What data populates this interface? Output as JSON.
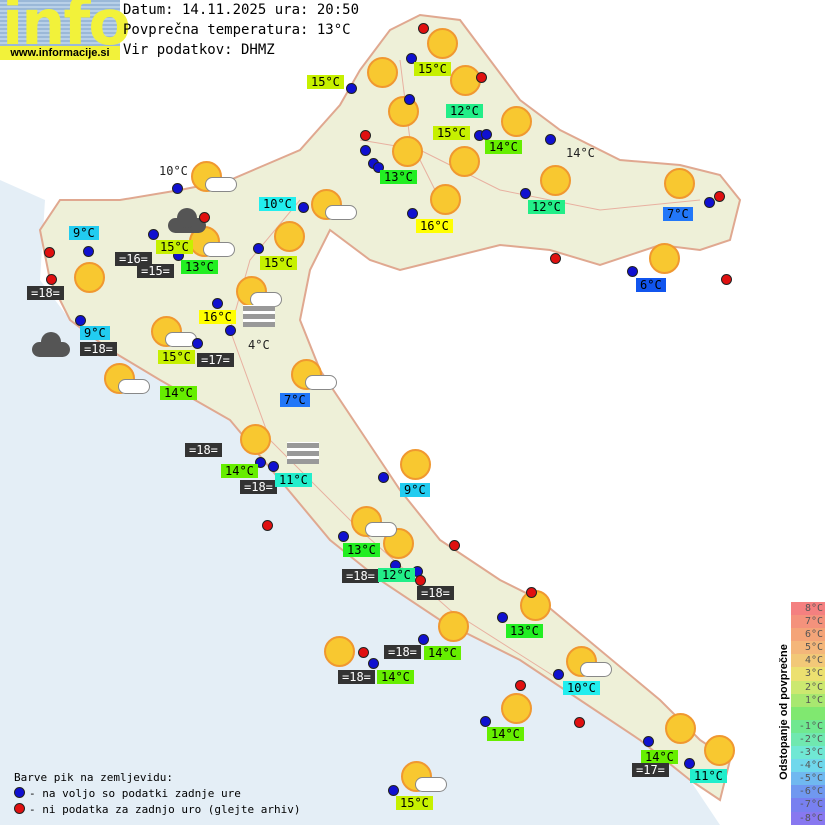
{
  "logo": {
    "word": "info",
    "url": "www.informacije.si"
  },
  "header": {
    "date_line": "Datum: 14.11.2025 ura: 20:50",
    "avg_temp_line": "Povprečna temperatura: 13°C",
    "source_line": "Vir podatkov: DHMZ"
  },
  "colors": {
    "t16": "#ffff00",
    "t15": "#c6f000",
    "t14": "#66ee00",
    "t13": "#22ee22",
    "t12": "#22ee88",
    "t11": "#22eecc",
    "t10": "#22eeee",
    "t9": "#22ccf0",
    "t7": "#2277f8",
    "t6": "#1155ee",
    "dark": "#333333",
    "station_ok": "#1010d0",
    "station_missing": "#e01010"
  },
  "labels": [
    {
      "text": "15°C",
      "style": "t15"
    },
    {
      "text": "15°C",
      "style": "t15"
    },
    {
      "text": "12°C",
      "style": "t12"
    },
    {
      "text": "15°C",
      "style": "t15"
    },
    {
      "text": "14°C",
      "style": "t14"
    },
    {
      "text": "13°C",
      "style": "t13"
    },
    {
      "text": "14°C",
      "style": "plain"
    },
    {
      "text": "10°C",
      "style": "t10"
    },
    {
      "text": "12°C",
      "style": "t12"
    },
    {
      "text": "16°C",
      "style": "t16"
    },
    {
      "text": "7°C",
      "style": "t7"
    },
    {
      "text": "9°C",
      "style": "t9"
    },
    {
      "text": "15°C",
      "style": "t15"
    },
    {
      "text": "13°C",
      "style": "t13"
    },
    {
      "text": "15°C",
      "style": "t15"
    },
    {
      "text": "=16=",
      "style": "dark"
    },
    {
      "text": "=15=",
      "style": "dark"
    },
    {
      "text": "=18=",
      "style": "dark"
    },
    {
      "text": "6°C",
      "style": "t6"
    },
    {
      "text": "16°C",
      "style": "t16"
    },
    {
      "text": "9°C",
      "style": "t9"
    },
    {
      "text": "=18=",
      "style": "dark"
    },
    {
      "text": "15°C",
      "style": "t15"
    },
    {
      "text": "=17=",
      "style": "dark"
    },
    {
      "text": "4°C",
      "style": "plain"
    },
    {
      "text": "10°C",
      "style": "plain"
    },
    {
      "text": "14°C",
      "style": "t14"
    },
    {
      "text": "7°C",
      "style": "t7"
    },
    {
      "text": "=18=",
      "style": "dark"
    },
    {
      "text": "14°C",
      "style": "t14"
    },
    {
      "text": "=18=",
      "style": "dark"
    },
    {
      "text": "11°C",
      "style": "t11"
    },
    {
      "text": "9°C",
      "style": "t9"
    },
    {
      "text": "13°C",
      "style": "t13"
    },
    {
      "text": "=18=",
      "style": "dark"
    },
    {
      "text": "12°C",
      "style": "t12"
    },
    {
      "text": "=18=",
      "style": "dark"
    },
    {
      "text": "13°C",
      "style": "t13"
    },
    {
      "text": "=18=",
      "style": "dark"
    },
    {
      "text": "14°C",
      "style": "t14"
    },
    {
      "text": "=18=",
      "style": "dark"
    },
    {
      "text": "14°C",
      "style": "t14"
    },
    {
      "text": "10°C",
      "style": "t10"
    },
    {
      "text": "14°C",
      "style": "t14"
    },
    {
      "text": "14°C",
      "style": "t14"
    },
    {
      "text": "=17=",
      "style": "dark"
    },
    {
      "text": "11°C",
      "style": "t11"
    },
    {
      "text": "15°C",
      "style": "t15"
    }
  ],
  "legend": {
    "title": "Barve pik na zemljevidu:",
    "ok": "- na voljo so podatki zadnje ure",
    "missing": "- ni podatka za zadnjo uro (glejte arhiv)"
  },
  "scale": {
    "title": "Odstopanje od povprečne temperature:",
    "steps": [
      {
        "label": "8°C",
        "color": "#f48080"
      },
      {
        "label": "7°C",
        "color": "#f4927c"
      },
      {
        "label": "6°C",
        "color": "#f4a478"
      },
      {
        "label": "5°C",
        "color": "#f4b67a"
      },
      {
        "label": "4°C",
        "color": "#f2c878"
      },
      {
        "label": "3°C",
        "color": "#ece070"
      },
      {
        "label": "2°C",
        "color": "#cce870"
      },
      {
        "label": "1°C",
        "color": "#a8e870"
      },
      {
        "label": "",
        "color": "#80e870"
      },
      {
        "label": "-1°C",
        "color": "#70e890"
      },
      {
        "label": "-2°C",
        "color": "#70e8b0"
      },
      {
        "label": "-3°C",
        "color": "#70e8d4"
      },
      {
        "label": "-4°C",
        "color": "#70d8ec"
      },
      {
        "label": "-5°C",
        "color": "#70b8f0"
      },
      {
        "label": "-6°C",
        "color": "#7098f0"
      },
      {
        "label": "-7°C",
        "color": "#7880f0"
      },
      {
        "label": "-8°C",
        "color": "#8878f0"
      }
    ]
  }
}
